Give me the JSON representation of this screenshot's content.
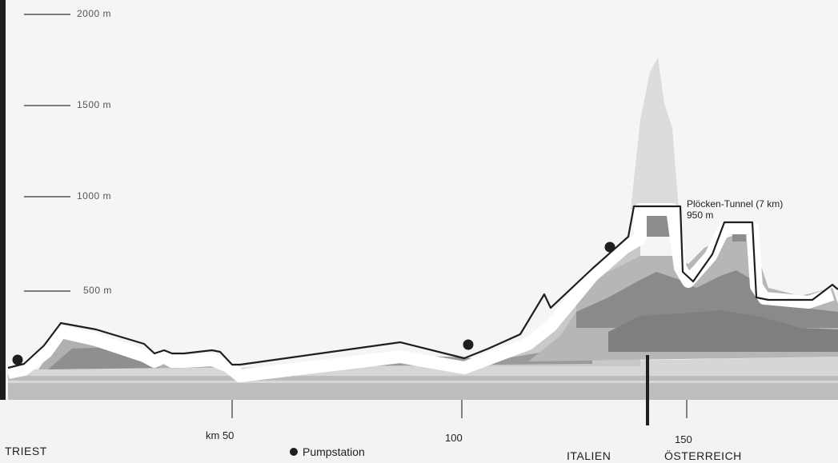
{
  "elevation_labels": [
    "2000 m",
    "1500 m",
    "1000 m",
    "500 m"
  ],
  "km_labels": [
    "km 50",
    "100",
    "150"
  ],
  "places": {
    "start": "TRIEST",
    "border_left": "ITALIEN",
    "border_right": "ÖSTERREICH"
  },
  "legend": {
    "pump_station": "Pumpstation"
  },
  "tunnel": {
    "name": "Plöcken-Tunnel (7 km)",
    "elevation": "950 m"
  },
  "colors": {
    "profile_line": "#1e1e1e",
    "band_dark": "#8f8f8f",
    "band_mid": "#b3b3b3",
    "band_light": "#d0d0d0",
    "peak": "#d8d8d8"
  }
}
